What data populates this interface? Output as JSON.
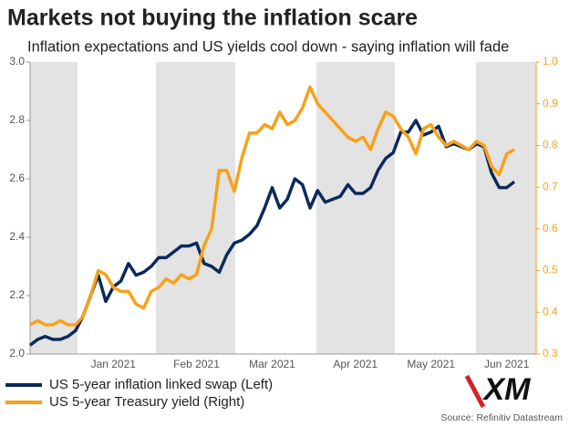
{
  "chart_data": {
    "type": "line",
    "title": "Markets not buying the inflation scare",
    "subtitle": "Inflation expectations and US yields cool down - saying inflation will fade",
    "source": "Source: Refinitiv Datastream",
    "logo": "XM",
    "categories": [
      null,
      null,
      null,
      null,
      null,
      null,
      null,
      null,
      null,
      null,
      null,
      "Jan 2021",
      null,
      null,
      null,
      null,
      null,
      null,
      null,
      null,
      null,
      null,
      "Feb 2021",
      null,
      null,
      null,
      null,
      null,
      null,
      null,
      null,
      null,
      "Mar 2021",
      null,
      null,
      null,
      null,
      null,
      null,
      null,
      null,
      null,
      null,
      "Apr 2021",
      null,
      null,
      null,
      null,
      null,
      null,
      null,
      null,
      null,
      "May 2021",
      null,
      null,
      null,
      null,
      null,
      null,
      null,
      null,
      null,
      "Jun 2021",
      null
    ],
    "series": [
      {
        "name": "US 5-year inflation linked swap (Left)",
        "color": "#0b2a5b",
        "axis": "y",
        "values": [
          2.03,
          2.05,
          2.06,
          2.05,
          2.05,
          2.06,
          2.08,
          2.13,
          2.2,
          2.27,
          2.18,
          2.23,
          2.25,
          2.31,
          2.27,
          2.28,
          2.3,
          2.33,
          2.33,
          2.35,
          2.37,
          2.37,
          2.38,
          2.31,
          2.3,
          2.28,
          2.34,
          2.38,
          2.39,
          2.41,
          2.44,
          2.5,
          2.57,
          2.5,
          2.53,
          2.6,
          2.58,
          2.5,
          2.56,
          2.52,
          2.53,
          2.54,
          2.58,
          2.55,
          2.55,
          2.57,
          2.63,
          2.67,
          2.69,
          2.76,
          2.76,
          2.8,
          2.75,
          2.76,
          2.78,
          2.71,
          2.72,
          2.71,
          2.7,
          2.72,
          2.71,
          2.62,
          2.57,
          2.57,
          2.59
        ]
      },
      {
        "name": "US 5-year Treasury yield (Right)",
        "color": "#f7a11a",
        "axis": "y2",
        "values": [
          0.37,
          0.38,
          0.37,
          0.37,
          0.38,
          0.37,
          0.37,
          0.39,
          0.44,
          0.5,
          0.49,
          0.46,
          0.45,
          0.45,
          0.42,
          0.41,
          0.45,
          0.46,
          0.48,
          0.47,
          0.49,
          0.48,
          0.49,
          0.56,
          0.6,
          0.74,
          0.74,
          0.69,
          0.77,
          0.83,
          0.83,
          0.85,
          0.84,
          0.88,
          0.85,
          0.86,
          0.89,
          0.94,
          0.9,
          0.88,
          0.86,
          0.84,
          0.82,
          0.81,
          0.82,
          0.79,
          0.84,
          0.88,
          0.87,
          0.84,
          0.82,
          0.78,
          0.84,
          0.85,
          0.82,
          0.8,
          0.81,
          0.8,
          0.79,
          0.81,
          0.8,
          0.75,
          0.73,
          0.78,
          0.79
        ]
      }
    ],
    "ylim": [
      2,
      3
    ],
    "yticks": [
      {
        "value": 2,
        "label": "2.0"
      },
      2.2,
      2.4,
      2.6,
      2.8,
      {
        "value": 3,
        "label": "3.0"
      }
    ],
    "y2lim": [
      0.3,
      1
    ],
    "y2ticks": [
      0.3,
      0.4,
      0.5,
      0.6,
      0.7,
      0.8,
      0.9,
      {
        "value": 1,
        "label": "1.0"
      }
    ]
  }
}
